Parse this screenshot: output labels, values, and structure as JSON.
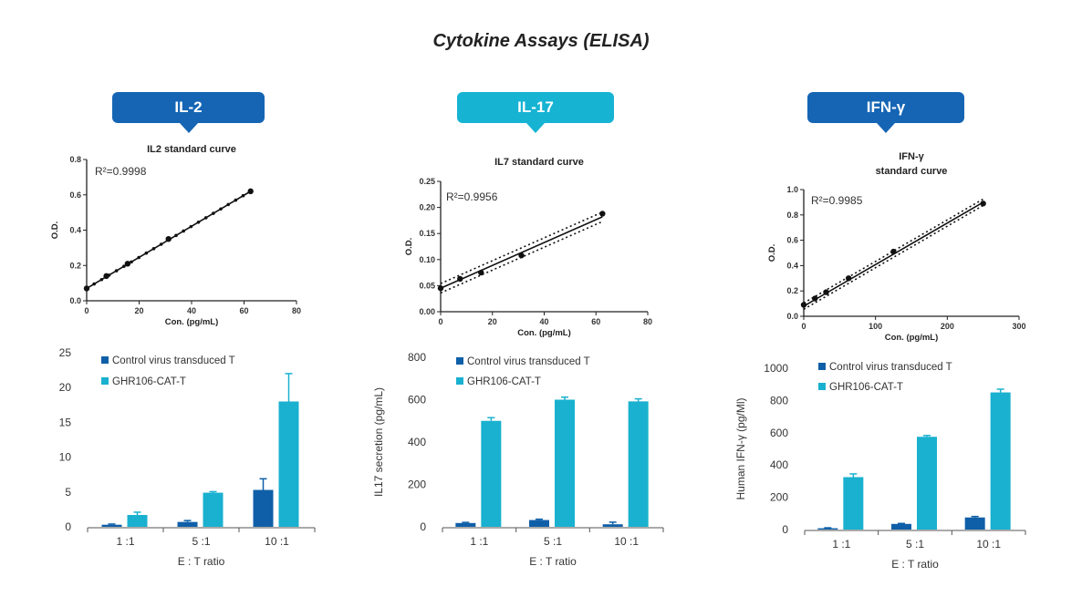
{
  "page_title": "Cytokine Assays (ELISA)",
  "colors": {
    "dark_blue": "#0f5fa8",
    "light_blue": "#19b1cf",
    "tag_il2": "#1565b4",
    "tag_il17": "#16b3d3",
    "tag_ifn": "#1565b4"
  },
  "panels": [
    {
      "tag": "IL-2",
      "std_title": [
        "IL2 standard curve"
      ],
      "r2": "R²=0.9998",
      "bar_ylabel": "",
      "bar_xlabel": "E : T ratio"
    },
    {
      "tag": "IL-17",
      "std_title": [
        "IL7 standard curve"
      ],
      "r2": "R²=0.9956",
      "bar_ylabel": "IL17 secretion (pg/mL)",
      "bar_xlabel": "E : T ratio"
    },
    {
      "tag": "IFN-γ",
      "std_title": [
        "IFN-γ",
        "standard curve"
      ],
      "r2": "R²=0.9985",
      "bar_ylabel": "Human IFN-γ (pg/Ml)",
      "bar_xlabel": "E : T ratio"
    }
  ],
  "chart_data": [
    {
      "type": "scatter",
      "title": "IL2 standard curve",
      "xlabel": "Con. (pg/mL)",
      "ylabel": "O.D.",
      "xlim": [
        0,
        80
      ],
      "ylim": [
        0,
        0.8
      ],
      "xticks": [
        "0",
        "20",
        "40",
        "60",
        "80"
      ],
      "yticks": [
        "0.0",
        "0.2",
        "0.4",
        "0.6",
        "0.8"
      ],
      "x": [
        0,
        7.5,
        15.6,
        31.2,
        62.5
      ],
      "y": [
        0.07,
        0.14,
        0.21,
        0.35,
        0.62
      ],
      "fit": [
        [
          0,
          0.07
        ],
        [
          62.5,
          0.62
        ]
      ],
      "confidence_band": false
    },
    {
      "type": "scatter",
      "title": "IL7 standard curve",
      "xlabel": "Con. (pg/mL)",
      "ylabel": "O.D.",
      "xlim": [
        0,
        80
      ],
      "ylim": [
        0,
        0.25
      ],
      "xticks": [
        "0",
        "20",
        "40",
        "60",
        "80"
      ],
      "yticks": [
        "0.00",
        "0.05",
        "0.10",
        "0.15",
        "0.20",
        "0.25"
      ],
      "x": [
        0,
        7.5,
        15.6,
        31.2,
        62.5
      ],
      "y": [
        0.045,
        0.063,
        0.075,
        0.108,
        0.188
      ],
      "fit": [
        [
          0,
          0.045
        ],
        [
          62.5,
          0.182
        ]
      ],
      "confidence_band": true,
      "band": 0.009
    },
    {
      "type": "scatter",
      "title": "IFN-γ standard curve",
      "xlabel": "Con. (pg/mL)",
      "ylabel": "O.D.",
      "xlim": [
        0,
        300
      ],
      "ylim": [
        0,
        1.0
      ],
      "xticks": [
        "0",
        "100",
        "200",
        "300"
      ],
      "yticks": [
        "0.0",
        "0.2",
        "0.4",
        "0.6",
        "0.8",
        "1.0"
      ],
      "x": [
        0,
        15.6,
        31.2,
        62.5,
        125,
        250
      ],
      "y": [
        0.09,
        0.14,
        0.19,
        0.3,
        0.51,
        0.89
      ],
      "fit": [
        [
          0,
          0.08
        ],
        [
          250,
          0.9
        ]
      ],
      "confidence_band": true,
      "band": 0.025
    },
    {
      "type": "bar",
      "ylabel": "",
      "xlabel": "E : T ratio",
      "ylim": [
        0,
        25
      ],
      "yticks": [
        "0",
        "5",
        "10",
        "15",
        "20",
        "25"
      ],
      "categories": [
        "1 :1",
        "5 :1",
        "10 :1"
      ],
      "series": [
        {
          "name": "Control virus transduced T",
          "values": [
            0.3,
            0.7,
            5.3
          ],
          "errors": [
            0.1,
            0.2,
            1.6
          ]
        },
        {
          "name": "GHR106-CAT-T",
          "values": [
            1.7,
            4.9,
            18
          ],
          "errors": [
            0.4,
            0.15,
            4
          ]
        }
      ]
    },
    {
      "type": "bar",
      "ylabel": "IL17 secretion (pg/mL)",
      "xlabel": "E : T ratio",
      "ylim": [
        0,
        800
      ],
      "yticks": [
        "0",
        "200",
        "400",
        "600",
        "800"
      ],
      "categories": [
        "1 :1",
        "5 :1",
        "10 :1"
      ],
      "series": [
        {
          "name": "Control virus transduced T",
          "values": [
            18,
            32,
            12
          ],
          "errors": [
            3,
            4,
            10
          ]
        },
        {
          "name": "GHR106-CAT-T",
          "values": [
            500,
            600,
            592
          ],
          "errors": [
            15,
            12,
            12
          ]
        }
      ]
    },
    {
      "type": "bar",
      "ylabel": "Human IFN-γ (pg/Ml)",
      "xlabel": "E : T ratio",
      "ylim": [
        0,
        1000
      ],
      "yticks": [
        "0",
        "200",
        "400",
        "600",
        "800",
        "1000"
      ],
      "categories": [
        "1 :1",
        "5 :1",
        "10 :1"
      ],
      "series": [
        {
          "name": "Control virus transduced T",
          "values": [
            8,
            35,
            75
          ],
          "errors": [
            3,
            3,
            6
          ]
        },
        {
          "name": "GHR106-CAT-T",
          "values": [
            325,
            575,
            850
          ],
          "errors": [
            20,
            8,
            20
          ]
        }
      ]
    }
  ]
}
